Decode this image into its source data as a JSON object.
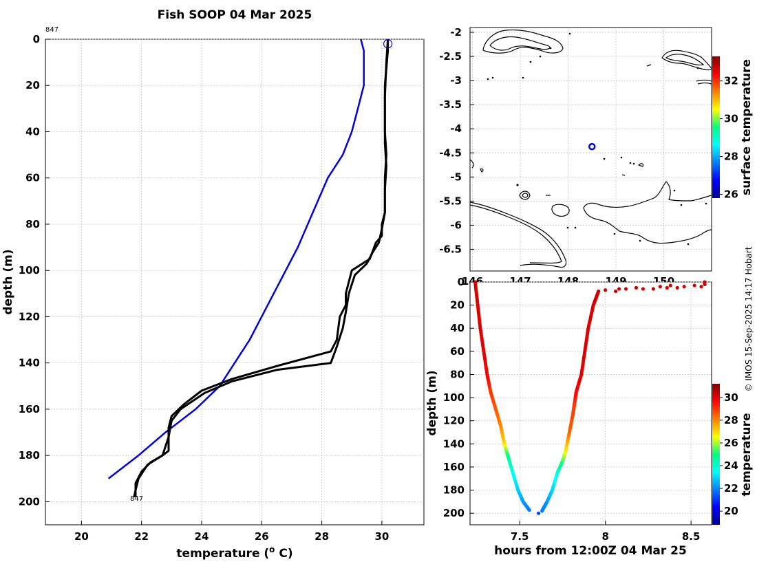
{
  "title": "Fish SOOP 04 Mar 2025",
  "copyright": "© IMOS 15-Sep-2025 14:17 Hobart",
  "chart_data": [
    {
      "id": "profile",
      "type": "line",
      "xlabel": "temperature (",
      "xlabel_sup": "o",
      "xlabel_end": " C)",
      "ylabel": "depth (m)",
      "xlim": [
        18.8,
        31.4
      ],
      "ylim": [
        0,
        210
      ],
      "xticks": [
        20,
        22,
        24,
        26,
        28,
        30
      ],
      "yticks": [
        0,
        20,
        40,
        60,
        80,
        100,
        120,
        140,
        160,
        180,
        200
      ],
      "profile_id_top": "847",
      "profile_id_bottom": "847",
      "series": [
        {
          "name": "climatology",
          "color": "#0000dd",
          "temp": [
            29.3,
            29.4,
            29.4,
            29.4,
            29.2,
            29.0,
            28.7,
            28.2,
            27.7,
            27.2,
            26.4,
            25.6,
            24.6,
            23.8,
            22.8,
            21.9,
            20.9
          ],
          "depth": [
            0,
            5,
            10,
            20,
            30,
            40,
            50,
            60,
            75,
            90,
            110,
            130,
            150,
            160,
            170,
            180,
            190
          ]
        },
        {
          "name": "profile-down",
          "color": "#000000",
          "temp": [
            30.2,
            30.2,
            30.1,
            30.1,
            30.15,
            30.1,
            30.1,
            30.1,
            30.0,
            30.0,
            29.8,
            29.6,
            29.0,
            28.8,
            28.8,
            28.6,
            28.5,
            28.3,
            26.6,
            25.0,
            24.0,
            23.4,
            23.0,
            22.9,
            22.9,
            22.7,
            22.3,
            22.0,
            21.8,
            21.8
          ],
          "depth": [
            0,
            5,
            20,
            40,
            50,
            60,
            70,
            75,
            80,
            85,
            88,
            95,
            100,
            110,
            115,
            120,
            130,
            135,
            141,
            147,
            152,
            158,
            163,
            168,
            178,
            180,
            183,
            187,
            192,
            198
          ]
        },
        {
          "name": "profile-up",
          "color": "#000000",
          "temp": [
            30.2,
            30.15,
            30.1,
            30.1,
            30.15,
            30.1,
            30.1,
            30.0,
            29.9,
            29.7,
            29.5,
            29.1,
            28.9,
            28.8,
            28.7,
            28.5,
            28.3,
            26.5,
            25.0,
            24.1,
            23.3,
            23.0,
            22.9,
            22.7,
            22.2,
            21.9,
            21.8,
            21.75
          ],
          "depth": [
            0,
            10,
            25,
            45,
            55,
            65,
            75,
            82,
            88,
            92,
            97,
            102,
            110,
            118,
            125,
            133,
            140,
            143,
            148,
            153,
            160,
            165,
            172,
            180,
            184,
            190,
            195,
            198
          ]
        }
      ],
      "surface_marker": {
        "temp": 30.2,
        "depth": 2,
        "color": "#0000dd"
      }
    },
    {
      "id": "map",
      "type": "map",
      "xticks": [
        146,
        147,
        148,
        149,
        150
      ],
      "xtick_labels": [
        "146",
        "147",
        "148",
        "149",
        "150"
      ],
      "yticks": [
        -2,
        -2.5,
        -3,
        -3.5,
        -4,
        -4.5,
        -5,
        -5.5,
        -6,
        -6.5
      ],
      "xlim": [
        145.95,
        151.0
      ],
      "ylim": [
        -6.95,
        -1.9
      ],
      "station": {
        "lon": 148.5,
        "lat": -4.37,
        "color": "#0000dd"
      },
      "colorbar": {
        "label": "surface temperature",
        "ticks": [
          26,
          28,
          30,
          32
        ],
        "range": [
          25.8,
          33.3
        ]
      }
    },
    {
      "id": "section",
      "type": "scatter",
      "xlabel": "hours from 12:00Z 04 Mar 25",
      "ylabel": "depth (m)",
      "xlim": [
        7.21,
        8.62
      ],
      "ylim": [
        0,
        210
      ],
      "xticks": [
        7.5,
        8,
        8.5
      ],
      "xtick_labels": [
        "7.5",
        "8",
        "8.5"
      ],
      "yticks": [
        0,
        20,
        40,
        60,
        80,
        100,
        120,
        140,
        160,
        180,
        200
      ],
      "colorbar": {
        "label": "temperature",
        "ticks": [
          20,
          22,
          24,
          26,
          28,
          30
        ],
        "range": [
          18.8,
          31.2
        ]
      },
      "down_cast": {
        "hours": [
          7.24,
          7.255,
          7.27,
          7.29,
          7.31,
          7.33,
          7.36,
          7.39,
          7.41,
          7.43,
          7.46,
          7.49,
          7.52,
          7.56
        ],
        "depth": [
          0,
          20,
          40,
          60,
          80,
          95,
          110,
          125,
          140,
          150,
          165,
          180,
          190,
          198
        ],
        "temp": [
          30.2,
          30.1,
          30.1,
          30.0,
          29.8,
          29.0,
          28.6,
          28.0,
          27.0,
          25.0,
          23.6,
          22.9,
          22.3,
          21.8
        ]
      },
      "up_cast": {
        "hours": [
          7.63,
          7.66,
          7.69,
          7.72,
          7.75,
          7.77,
          7.79,
          7.81,
          7.82,
          7.83,
          7.86,
          7.88,
          7.9,
          7.93,
          7.96
        ],
        "depth": [
          198,
          190,
          180,
          165,
          155,
          145,
          130,
          115,
          105,
          95,
          80,
          60,
          40,
          20,
          8
        ],
        "temp": [
          21.8,
          22.2,
          22.9,
          23.8,
          25.2,
          26.8,
          28.4,
          28.8,
          29.0,
          29.6,
          30.0,
          30.1,
          30.1,
          30.15,
          30.2
        ]
      },
      "surface_points": {
        "hours": [
          7.96,
          8.0,
          8.06,
          8.08,
          8.12,
          8.18,
          8.22,
          8.28,
          8.32,
          8.36,
          8.38,
          8.42,
          8.46,
          8.52,
          8.56,
          8.58,
          8.58
        ],
        "depth": [
          8,
          7,
          8,
          6,
          6,
          5,
          6,
          6,
          4,
          5,
          3,
          5,
          4,
          3,
          4,
          2,
          0
        ],
        "temp": [
          30.2,
          30.2,
          30.3,
          30.3,
          30.2,
          30.3,
          30.2,
          30.3,
          30.2,
          30.2,
          30.3,
          30.2,
          30.2,
          30.3,
          30.2,
          30.3,
          30.2
        ]
      },
      "bottom_points": {
        "hours": [
          7.61
        ],
        "depth": [
          200
        ],
        "temp": [
          21.2
        ]
      }
    }
  ]
}
